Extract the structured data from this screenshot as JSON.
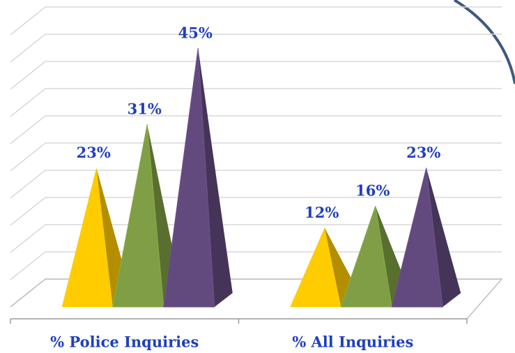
{
  "chart_data": {
    "type": "pyramid3d",
    "categories": [
      "% Police Inquiries",
      "% All Inquiries"
    ],
    "series": [
      {
        "color": "#ffcc00",
        "values": [
          23,
          12
        ],
        "value_labels": [
          "23%",
          "12%"
        ]
      },
      {
        "color": "#7f9e45",
        "values": [
          31,
          16
        ],
        "value_labels": [
          "31%",
          "16%"
        ]
      },
      {
        "color": "#634a7e",
        "values": [
          45,
          23
        ],
        "value_labels": [
          "45%",
          "23%"
        ]
      }
    ],
    "ylim": [
      0,
      50
    ],
    "yticks": [
      0,
      5,
      10,
      15,
      20,
      25,
      30,
      35,
      40,
      45,
      50
    ],
    "grid": true
  }
}
